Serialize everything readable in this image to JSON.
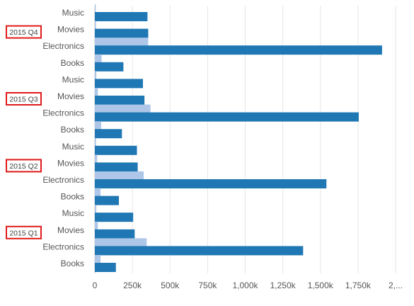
{
  "chart_data": {
    "type": "bar",
    "orientation": "horizontal",
    "groups": [
      {
        "label": "2015 Q4",
        "items": [
          {
            "category": "Music",
            "dark": 350000,
            "light": 6000
          },
          {
            "category": "Movies",
            "dark": 355000,
            "light": 8000
          },
          {
            "category": "Electronics",
            "dark": 1910000,
            "light": 355000
          },
          {
            "category": "Books",
            "dark": 190000,
            "light": 45000
          }
        ]
      },
      {
        "label": "2015 Q3",
        "items": [
          {
            "category": "Music",
            "dark": 320000,
            "light": 10000
          },
          {
            "category": "Movies",
            "dark": 330000,
            "light": 20000
          },
          {
            "category": "Electronics",
            "dark": 1755000,
            "light": 370000
          },
          {
            "category": "Books",
            "dark": 180000,
            "light": 42000
          }
        ]
      },
      {
        "label": "2015 Q2",
        "items": [
          {
            "category": "Music",
            "dark": 280000,
            "light": 8000
          },
          {
            "category": "Movies",
            "dark": 285000,
            "light": 15000
          },
          {
            "category": "Electronics",
            "dark": 1540000,
            "light": 325000
          },
          {
            "category": "Books",
            "dark": 160000,
            "light": 38000
          }
        ]
      },
      {
        "label": "2015 Q1",
        "items": [
          {
            "category": "Music",
            "dark": 255000,
            "light": 10000
          },
          {
            "category": "Movies",
            "dark": 265000,
            "light": 20000
          },
          {
            "category": "Electronics",
            "dark": 1385000,
            "light": 345000
          },
          {
            "category": "Books",
            "dark": 140000,
            "light": 38000
          }
        ]
      }
    ],
    "xlim": [
      0,
      2000000
    ],
    "xticks": [
      "0",
      "250k",
      "500k",
      "750k",
      "1,000k",
      "1,250k",
      "1,500k",
      "1,750k",
      "2,..."
    ],
    "colors": {
      "dark": "#1f77b4",
      "light": "#aec7e8",
      "grid": "#e6e6e6",
      "group_label_border": "#e01b1b",
      "label_text": "#555555"
    },
    "grid": true
  }
}
